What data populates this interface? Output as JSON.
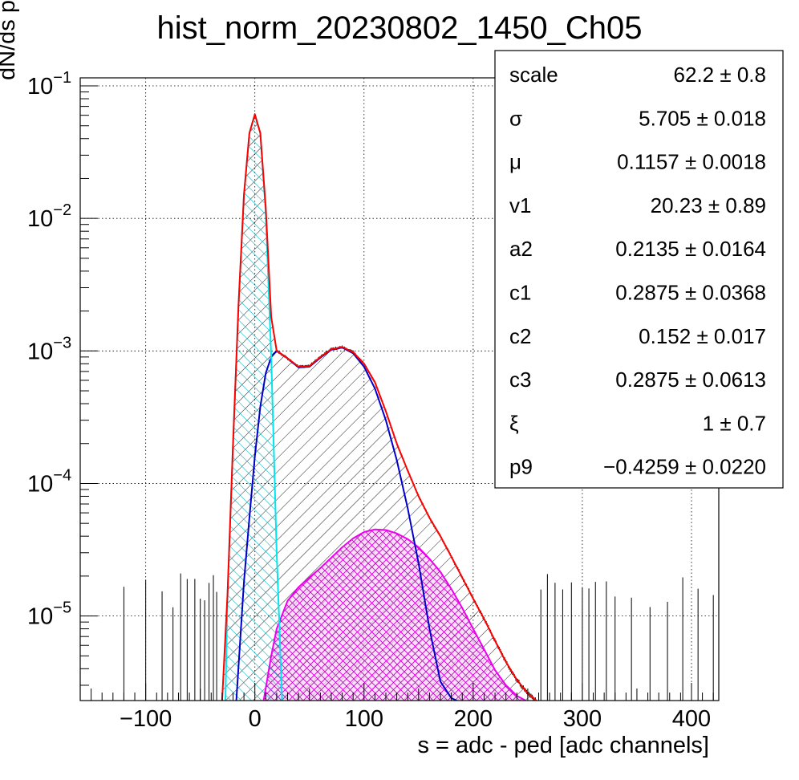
{
  "chart_data": {
    "type": "line",
    "title": "hist_norm_20230802_1450_Ch05",
    "xlabel": "s = adc - ped [adc channels]",
    "ylabel": "dN/ds p.d.f. [a.u.]",
    "x_range": [
      -160,
      425
    ],
    "y_range": [
      2.3e-06,
      0.115
    ],
    "y_scale": "log",
    "grid": true,
    "x_ticks": [
      -100,
      0,
      100,
      200,
      300,
      400
    ],
    "x_tick_labels": [
      "−100",
      "0",
      "100",
      "200",
      "300",
      "400"
    ],
    "y_ticks": [
      {
        "value": 1e-05,
        "base": "10",
        "exp": "−5"
      },
      {
        "value": 0.0001,
        "base": "10",
        "exp": "−4"
      },
      {
        "value": 0.001,
        "base": "10",
        "exp": "−3"
      },
      {
        "value": 0.01,
        "base": "10",
        "exp": "−2"
      },
      {
        "value": 0.1,
        "base": "10",
        "exp": "−1"
      }
    ],
    "series": [
      {
        "role": "total-fit",
        "color": "#ff0000",
        "x": [
          -30,
          -25,
          -20,
          -15,
          -10,
          -5,
          0,
          5,
          10,
          15,
          20,
          30,
          40,
          50,
          60,
          70,
          80,
          90,
          100,
          110,
          120,
          130,
          140,
          150,
          160,
          170,
          180,
          190,
          200,
          210,
          220,
          230,
          240,
          250,
          258
        ],
        "y": [
          2.3e-06,
          1.5e-05,
          0.0002,
          0.0022,
          0.015,
          0.044,
          0.061,
          0.044,
          0.012,
          0.0018,
          0.001,
          0.00088,
          0.00076,
          0.00077,
          0.0009,
          0.00103,
          0.00107,
          0.00098,
          0.0008,
          0.00058,
          0.00035,
          0.0002,
          0.000125,
          8e-05,
          5.5e-05,
          4e-05,
          2.8e-05,
          1.95e-05,
          1.35e-05,
          9.5e-06,
          6.5e-06,
          4.5e-06,
          3.3e-06,
          2.6e-06,
          2.3e-06
        ]
      },
      {
        "role": "pedestal-component",
        "color": "#00e5ee",
        "x": [
          -27,
          -25,
          -20,
          -15,
          -10,
          -5,
          0,
          5,
          10,
          15,
          20,
          25
        ],
        "y": [
          2.3e-06,
          1.5e-05,
          0.0002,
          0.0022,
          0.015,
          0.044,
          0.061,
          0.044,
          0.011,
          0.0009,
          3e-05,
          2.3e-06
        ]
      },
      {
        "role": "first-peak-component",
        "color": "#0000cc",
        "x": [
          -17,
          -10,
          -5,
          0,
          5,
          10,
          15,
          20,
          30,
          40,
          50,
          60,
          70,
          80,
          90,
          100,
          110,
          120,
          130,
          140,
          150,
          160,
          170,
          180,
          185
        ],
        "y": [
          2.3e-06,
          1.8e-05,
          5.5e-05,
          0.00016,
          0.00038,
          0.00068,
          0.0009,
          0.001,
          0.00088,
          0.00075,
          0.00076,
          0.00089,
          0.00102,
          0.00106,
          0.00096,
          0.00076,
          0.00052,
          0.0003,
          0.00015,
          6.5e-05,
          2.5e-05,
          8e-06,
          3.2e-06,
          2.4e-06,
          2.3e-06
        ]
      },
      {
        "role": "second-peak-component",
        "color": "#ee00ee",
        "x": [
          8,
          15,
          20,
          30,
          40,
          50,
          60,
          70,
          80,
          90,
          100,
          110,
          120,
          130,
          140,
          150,
          160,
          170,
          180,
          190,
          200,
          210,
          220,
          230,
          240,
          248
        ],
        "y": [
          2.3e-06,
          5e-06,
          8e-06,
          1.3e-05,
          1.65e-05,
          1.95e-05,
          2.3e-05,
          2.75e-05,
          3.3e-05,
          3.85e-05,
          4.3e-05,
          4.5e-05,
          4.45e-05,
          4.2e-05,
          3.8e-05,
          3.3e-05,
          2.7e-05,
          2.15e-05,
          1.6e-05,
          1.15e-05,
          8e-06,
          5.6e-06,
          3.9e-06,
          3e-06,
          2.5e-06,
          2.3e-06
        ]
      }
    ]
  },
  "stats_box": {
    "rows": [
      {
        "name": "scale",
        "value": "62.2 ± 0.8"
      },
      {
        "name": "σ",
        "value": "5.705 ± 0.018"
      },
      {
        "name": "μ",
        "value": "0.1157 ± 0.0018"
      },
      {
        "name": "v1",
        "value": "20.23 ± 0.89"
      },
      {
        "name": "a2",
        "value": "0.2135 ± 0.0164"
      },
      {
        "name": "c1",
        "value": "0.2875 ± 0.0368"
      },
      {
        "name": "c2",
        "value": "0.152 ± 0.017"
      },
      {
        "name": "c3",
        "value": "0.2875 ± 0.0613"
      },
      {
        "name": "ξ",
        "value": "1 ± 0.7"
      },
      {
        "name": "p9",
        "value": "−0.4259 ± 0.0220"
      }
    ]
  }
}
